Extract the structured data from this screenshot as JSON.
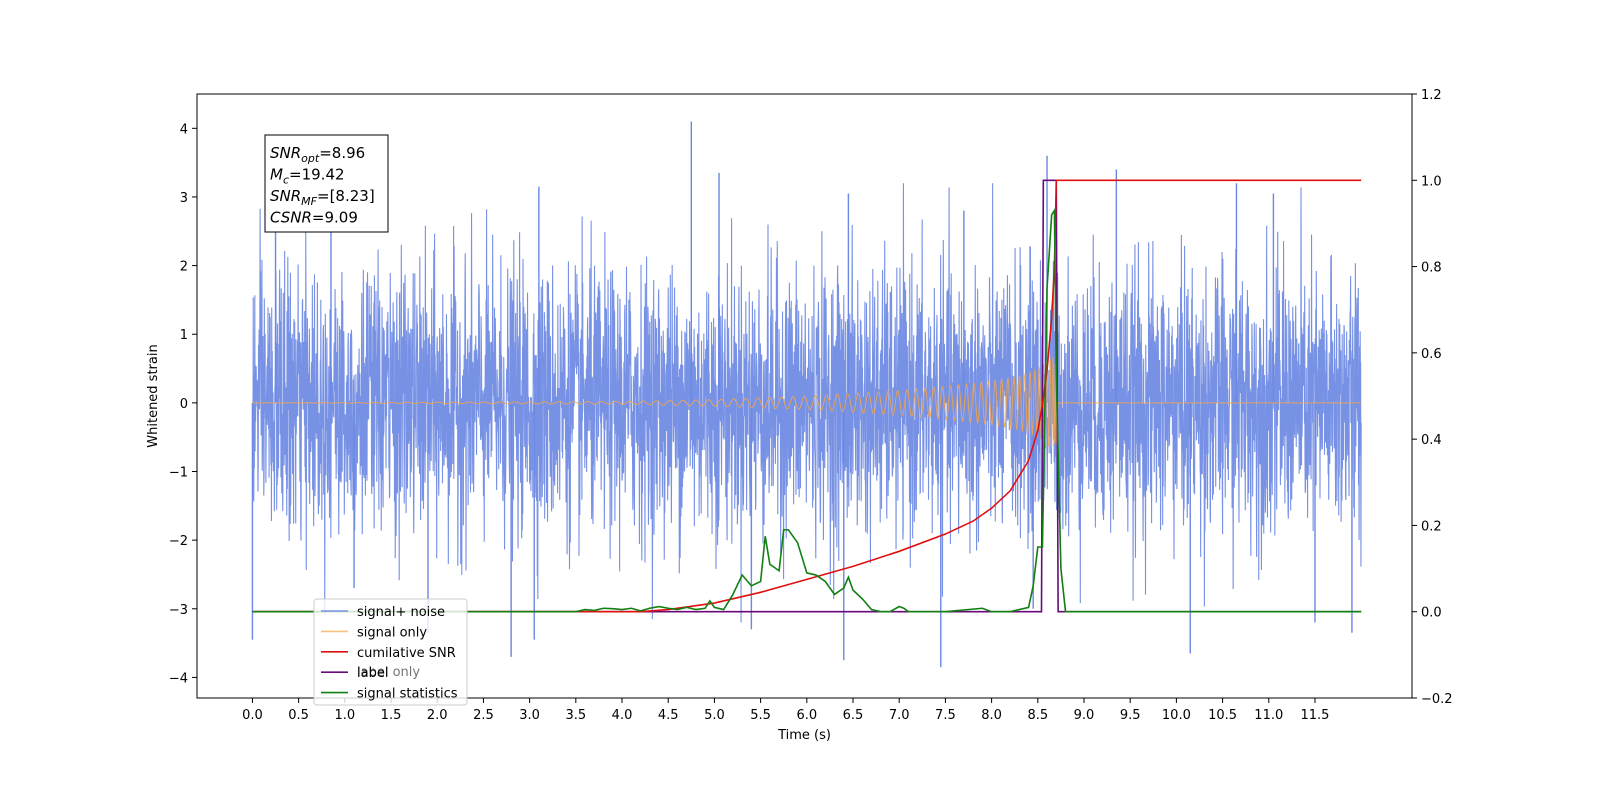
{
  "chart_data": {
    "type": "line",
    "title": "",
    "xlabel": "Time (s)",
    "ylabel": "Whitened strain",
    "xlim": [
      -0.6,
      12.55
    ],
    "ylim": [
      -4.3,
      4.5
    ],
    "y2lim": [
      -0.2,
      1.2
    ],
    "x_ticks": [
      0.0,
      0.5,
      1.0,
      1.5,
      2.0,
      2.5,
      3.0,
      3.5,
      4.0,
      4.5,
      5.0,
      5.5,
      6.0,
      6.5,
      7.0,
      7.5,
      8.0,
      8.5,
      9.0,
      9.5,
      10.0,
      10.5,
      11.0,
      11.5
    ],
    "x_tick_labels": [
      "0.0",
      "0.5",
      "1.0",
      "1.5",
      "2.0",
      "2.5",
      "3.0",
      "3.5",
      "4.0",
      "4.5",
      "5.0",
      "5.5",
      "6.0",
      "6.5",
      "7.0",
      "7.5",
      "8.0",
      "8.5",
      "9.0",
      "9.5",
      "10.0",
      "10.5",
      "11.0",
      "11.5"
    ],
    "y_ticks": [
      -4,
      -3,
      -2,
      -1,
      0,
      1,
      2,
      3,
      4
    ],
    "y_tick_labels": [
      "−4",
      "−3",
      "−2",
      "−1",
      "0",
      "1",
      "2",
      "3",
      "4"
    ],
    "y2_ticks": [
      -0.2,
      0.0,
      0.2,
      0.4,
      0.6,
      0.8,
      1.0,
      1.2
    ],
    "y2_tick_labels": [
      "−0.2",
      "0.0",
      "0.2",
      "0.4",
      "0.6",
      "0.8",
      "1.0",
      "1.2"
    ],
    "grid": false,
    "legend_position": "lower-left",
    "x_range": [
      0.0,
      12.0
    ],
    "series": [
      {
        "name": "signal+ noise",
        "axis": "left",
        "color": "#6b88e3",
        "description_style": "dense noise band",
        "envelope_peaks": [
          {
            "x": 0.0,
            "y": -3.45
          },
          {
            "x": 0.25,
            "y": 2.55
          },
          {
            "x": 0.85,
            "y": 2.8
          },
          {
            "x": 1.1,
            "y": -2.7
          },
          {
            "x": 1.9,
            "y": -3.35
          },
          {
            "x": 2.8,
            "y": -3.7
          },
          {
            "x": 3.1,
            "y": 3.15
          },
          {
            "x": 3.05,
            "y": -3.45
          },
          {
            "x": 4.75,
            "y": 4.1
          },
          {
            "x": 5.05,
            "y": 3.35
          },
          {
            "x": 5.4,
            "y": -3.3
          },
          {
            "x": 6.4,
            "y": -3.75
          },
          {
            "x": 6.45,
            "y": 3.05
          },
          {
            "x": 7.45,
            "y": -3.85
          },
          {
            "x": 7.7,
            "y": 2.8
          },
          {
            "x": 8.6,
            "y": 3.6
          },
          {
            "x": 8.45,
            "y": -3.0
          },
          {
            "x": 9.35,
            "y": 3.4
          },
          {
            "x": 10.15,
            "y": -3.65
          },
          {
            "x": 10.65,
            "y": 3.2
          },
          {
            "x": 11.05,
            "y": 3.05
          },
          {
            "x": 11.5,
            "y": -3.2
          },
          {
            "x": 11.9,
            "y": -3.35
          }
        ]
      },
      {
        "name": "signal only",
        "axis": "left",
        "color": "#f4a64a",
        "x": [
          0.0,
          4.0,
          5.0,
          6.0,
          7.0,
          7.5,
          8.0,
          8.3,
          8.5,
          8.6,
          8.65,
          8.7,
          8.72,
          12.0
        ],
        "amplitude": [
          0.0,
          0.02,
          0.05,
          0.1,
          0.18,
          0.24,
          0.32,
          0.4,
          0.5,
          0.62,
          0.7,
          0.6,
          0.0,
          0.0
        ]
      },
      {
        "name": "cumilative SNR",
        "axis": "right",
        "color": "#e01010",
        "x": [
          0.0,
          4.2,
          4.5,
          5.0,
          5.5,
          6.0,
          6.5,
          7.0,
          7.5,
          7.8,
          8.0,
          8.2,
          8.4,
          8.5,
          8.55,
          8.6,
          8.65,
          8.68,
          8.7,
          8.72,
          12.0
        ],
        "values": [
          0.0,
          0.0,
          0.005,
          0.02,
          0.045,
          0.075,
          0.105,
          0.14,
          0.18,
          0.21,
          0.24,
          0.28,
          0.35,
          0.42,
          0.48,
          0.56,
          0.68,
          0.8,
          1.0,
          1.0,
          1.0
        ]
      },
      {
        "name": "label",
        "axis": "right",
        "color": "#6a0a7a",
        "x": [
          0.0,
          8.54,
          8.56,
          8.7,
          8.72,
          12.0
        ],
        "values": [
          0.0,
          0.0,
          1.0,
          1.0,
          0.0,
          0.0
        ]
      },
      {
        "name": "signal statistics",
        "axis": "right",
        "color": "#118011",
        "x": [
          0.0,
          3.5,
          3.6,
          3.7,
          3.8,
          3.9,
          4.0,
          4.1,
          4.2,
          4.3,
          4.4,
          4.5,
          4.6,
          4.7,
          4.8,
          4.9,
          4.95,
          5.0,
          5.1,
          5.2,
          5.3,
          5.4,
          5.5,
          5.55,
          5.6,
          5.7,
          5.75,
          5.8,
          5.9,
          6.0,
          6.1,
          6.2,
          6.3,
          6.4,
          6.45,
          6.5,
          6.6,
          6.7,
          6.8,
          6.9,
          7.0,
          7.05,
          7.1,
          7.2,
          7.5,
          7.9,
          8.0,
          8.2,
          8.4,
          8.45,
          8.5,
          8.55,
          8.6,
          8.65,
          8.68,
          8.7,
          8.75,
          8.8,
          9.0,
          12.0
        ],
        "values": [
          0.0,
          0.0,
          0.005,
          0.003,
          0.008,
          0.007,
          0.005,
          0.008,
          0.002,
          0.008,
          0.012,
          0.008,
          0.005,
          0.01,
          0.005,
          0.008,
          0.025,
          0.01,
          0.005,
          0.04,
          0.085,
          0.06,
          0.07,
          0.175,
          0.11,
          0.095,
          0.19,
          0.19,
          0.16,
          0.09,
          0.085,
          0.07,
          0.04,
          0.055,
          0.08,
          0.05,
          0.03,
          0.005,
          0.0,
          0.0,
          0.012,
          0.008,
          0.0,
          0.0,
          0.0,
          0.008,
          0.0,
          0.0,
          0.01,
          0.06,
          0.15,
          0.15,
          0.75,
          0.92,
          0.93,
          0.55,
          0.1,
          0.0,
          0.0,
          0.0
        ]
      }
    ],
    "annotation_box": {
      "lines": [
        {
          "base": "SNR",
          "sub": "opt",
          "rest": "=8.96"
        },
        {
          "base": "M",
          "sub": "c",
          "rest": "=19.42"
        },
        {
          "base": "SNR",
          "sub": "MF",
          "rest": "=[8.23]"
        },
        {
          "base": "CSNR",
          "sub": "",
          "rest": "=9.09"
        }
      ]
    },
    "legend_overlap_text": "label only"
  }
}
